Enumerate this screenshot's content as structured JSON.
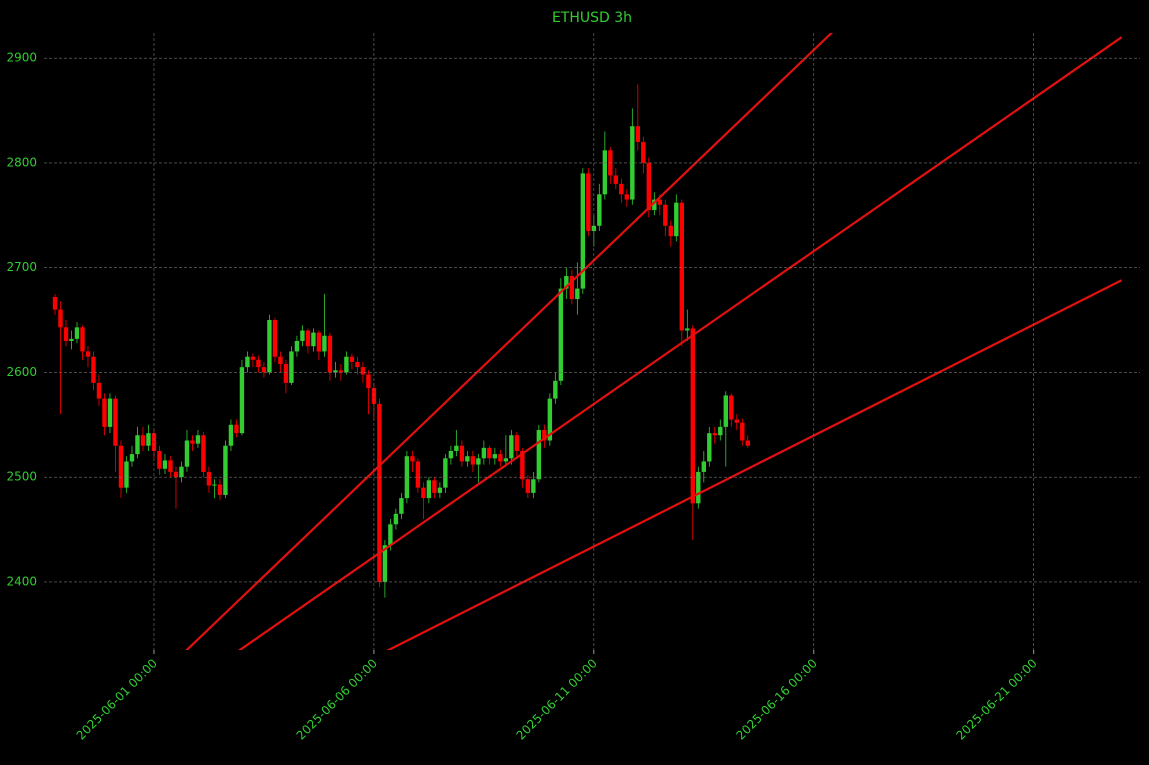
{
  "chart_data": {
    "type": "candlestick",
    "title": "ETHUSD 3h",
    "up_color": "#32cd32",
    "down_color": "#ff0000",
    "grid": true,
    "x": [
      "2025-05-29 18:00",
      "2025-05-29 21:00",
      "2025-05-30 00:00",
      "2025-05-30 03:00",
      "2025-05-30 06:00",
      "2025-05-30 09:00",
      "2025-05-30 12:00",
      "2025-05-30 15:00",
      "2025-05-30 18:00",
      "2025-05-30 21:00",
      "2025-05-31 00:00",
      "2025-05-31 03:00",
      "2025-05-31 06:00",
      "2025-05-31 09:00",
      "2025-05-31 12:00",
      "2025-05-31 15:00",
      "2025-05-31 18:00",
      "2025-05-31 21:00",
      "2025-06-01 00:00",
      "2025-06-01 03:00",
      "2025-06-01 06:00",
      "2025-06-01 09:00",
      "2025-06-01 12:00",
      "2025-06-01 15:00",
      "2025-06-01 18:00",
      "2025-06-01 21:00",
      "2025-06-02 00:00",
      "2025-06-02 03:00",
      "2025-06-02 06:00",
      "2025-06-02 09:00",
      "2025-06-02 12:00",
      "2025-06-02 15:00",
      "2025-06-02 18:00",
      "2025-06-02 21:00",
      "2025-06-03 00:00",
      "2025-06-03 03:00",
      "2025-06-03 06:00",
      "2025-06-03 09:00",
      "2025-06-03 12:00",
      "2025-06-03 15:00",
      "2025-06-03 18:00",
      "2025-06-03 21:00",
      "2025-06-04 00:00",
      "2025-06-04 03:00",
      "2025-06-04 06:00",
      "2025-06-04 09:00",
      "2025-06-04 12:00",
      "2025-06-04 15:00",
      "2025-06-04 18:00",
      "2025-06-04 21:00",
      "2025-06-05 00:00",
      "2025-06-05 03:00",
      "2025-06-05 06:00",
      "2025-06-05 09:00",
      "2025-06-05 12:00",
      "2025-06-05 15:00",
      "2025-06-05 18:00",
      "2025-06-05 21:00",
      "2025-06-06 00:00",
      "2025-06-06 03:00",
      "2025-06-06 06:00",
      "2025-06-06 09:00",
      "2025-06-06 12:00",
      "2025-06-06 15:00",
      "2025-06-06 18:00",
      "2025-06-06 21:00",
      "2025-06-07 00:00",
      "2025-06-07 03:00",
      "2025-06-07 06:00",
      "2025-06-07 09:00",
      "2025-06-07 12:00",
      "2025-06-07 15:00",
      "2025-06-07 18:00",
      "2025-06-07 21:00",
      "2025-06-08 00:00",
      "2025-06-08 03:00",
      "2025-06-08 06:00",
      "2025-06-08 09:00",
      "2025-06-08 12:00",
      "2025-06-08 15:00",
      "2025-06-08 18:00",
      "2025-06-08 21:00",
      "2025-06-09 00:00",
      "2025-06-09 03:00",
      "2025-06-09 06:00",
      "2025-06-09 09:00",
      "2025-06-09 12:00",
      "2025-06-09 15:00",
      "2025-06-09 18:00",
      "2025-06-09 21:00",
      "2025-06-10 00:00",
      "2025-06-10 03:00",
      "2025-06-10 06:00",
      "2025-06-10 09:00",
      "2025-06-10 12:00",
      "2025-06-10 15:00",
      "2025-06-10 18:00",
      "2025-06-10 21:00",
      "2025-06-11 00:00",
      "2025-06-11 03:00",
      "2025-06-11 06:00",
      "2025-06-11 09:00",
      "2025-06-11 12:00",
      "2025-06-11 15:00",
      "2025-06-11 18:00",
      "2025-06-11 21:00",
      "2025-06-12 00:00",
      "2025-06-12 03:00",
      "2025-06-12 06:00",
      "2025-06-12 09:00",
      "2025-06-12 12:00",
      "2025-06-12 15:00",
      "2025-06-12 18:00",
      "2025-06-12 21:00",
      "2025-06-13 00:00",
      "2025-06-13 03:00",
      "2025-06-13 06:00",
      "2025-06-13 09:00",
      "2025-06-13 12:00",
      "2025-06-13 15:00",
      "2025-06-13 18:00",
      "2025-06-13 21:00",
      "2025-06-14 00:00",
      "2025-06-14 03:00",
      "2025-06-14 06:00",
      "2025-06-14 09:00",
      "2025-06-14 12:00"
    ],
    "open": [
      2672,
      2660,
      2643,
      2630,
      2632,
      2643,
      2620,
      2615,
      2590,
      2575,
      2548,
      2575,
      2530,
      2490,
      2515,
      2522,
      2540,
      2530,
      2542,
      2525,
      2508,
      2516,
      2505,
      2500,
      2510,
      2535,
      2532,
      2540,
      2505,
      2492,
      2493,
      2483,
      2530,
      2550,
      2542,
      2605,
      2615,
      2612,
      2605,
      2600,
      2650,
      2615,
      2608,
      2590,
      2620,
      2630,
      2640,
      2625,
      2638,
      2620,
      2635,
      2600,
      2602,
      2600,
      2615,
      2610,
      2605,
      2598,
      2585,
      2570,
      2400,
      2435,
      2455,
      2465,
      2480,
      2520,
      2515,
      2490,
      2480,
      2497,
      2485,
      2490,
      2518,
      2525,
      2530,
      2515,
      2520,
      2512,
      2518,
      2528,
      2518,
      2522,
      2515,
      2518,
      2540,
      2525,
      2498,
      2485,
      2498,
      2545,
      2535,
      2575,
      2592,
      2680,
      2692,
      2670,
      2680,
      2790,
      2735,
      2740,
      2770,
      2812,
      2788,
      2780,
      2770,
      2765,
      2835,
      2820,
      2800,
      2755,
      2765,
      2760,
      2740,
      2730,
      2762,
      2640,
      2642,
      2475,
      2505,
      2515,
      2542,
      2540,
      2548,
      2578,
      2555,
      2552,
      2535
    ],
    "high": [
      2675,
      2668,
      2650,
      2640,
      2648,
      2645,
      2625,
      2620,
      2598,
      2580,
      2580,
      2578,
      2535,
      2520,
      2530,
      2548,
      2548,
      2550,
      2545,
      2530,
      2522,
      2520,
      2510,
      2515,
      2545,
      2540,
      2545,
      2543,
      2510,
      2498,
      2498,
      2535,
      2555,
      2555,
      2612,
      2620,
      2618,
      2616,
      2610,
      2655,
      2652,
      2620,
      2612,
      2625,
      2635,
      2645,
      2642,
      2642,
      2640,
      2675,
      2638,
      2610,
      2608,
      2620,
      2618,
      2615,
      2610,
      2602,
      2590,
      2575,
      2440,
      2460,
      2470,
      2485,
      2525,
      2525,
      2518,
      2495,
      2500,
      2500,
      2495,
      2522,
      2530,
      2545,
      2535,
      2525,
      2525,
      2522,
      2535,
      2530,
      2528,
      2526,
      2540,
      2545,
      2543,
      2528,
      2502,
      2505,
      2550,
      2550,
      2580,
      2600,
      2690,
      2700,
      2698,
      2705,
      2795,
      2795,
      2750,
      2780,
      2830,
      2815,
      2795,
      2785,
      2775,
      2852,
      2875,
      2825,
      2805,
      2772,
      2770,
      2765,
      2745,
      2770,
      2765,
      2660,
      2645,
      2510,
      2525,
      2548,
      2548,
      2555,
      2582,
      2580,
      2560,
      2556,
      2540
    ],
    "low": [
      2655,
      2560,
      2625,
      2622,
      2628,
      2612,
      2605,
      2583,
      2568,
      2540,
      2542,
      2505,
      2480,
      2485,
      2510,
      2518,
      2525,
      2525,
      2518,
      2502,
      2503,
      2500,
      2470,
      2495,
      2505,
      2525,
      2528,
      2500,
      2485,
      2480,
      2478,
      2480,
      2525,
      2538,
      2540,
      2600,
      2605,
      2600,
      2595,
      2598,
      2610,
      2600,
      2580,
      2588,
      2615,
      2625,
      2618,
      2620,
      2612,
      2615,
      2592,
      2595,
      2592,
      2598,
      2603,
      2598,
      2590,
      2560,
      2555,
      2395,
      2385,
      2430,
      2450,
      2460,
      2475,
      2505,
      2485,
      2460,
      2475,
      2480,
      2480,
      2485,
      2512,
      2520,
      2510,
      2510,
      2505,
      2495,
      2512,
      2512,
      2512,
      2510,
      2510,
      2512,
      2518,
      2490,
      2480,
      2480,
      2495,
      2528,
      2530,
      2570,
      2588,
      2670,
      2665,
      2655,
      2675,
      2730,
      2720,
      2735,
      2765,
      2780,
      2775,
      2762,
      2758,
      2760,
      2812,
      2790,
      2748,
      2750,
      2750,
      2730,
      2720,
      2725,
      2625,
      2630,
      2440,
      2470,
      2495,
      2510,
      2532,
      2535,
      2510,
      2548,
      2545,
      2530,
      2528
    ],
    "close": [
      2660,
      2643,
      2630,
      2632,
      2643,
      2620,
      2615,
      2590,
      2575,
      2548,
      2575,
      2530,
      2490,
      2515,
      2522,
      2540,
      2530,
      2542,
      2525,
      2508,
      2516,
      2505,
      2500,
      2510,
      2535,
      2532,
      2540,
      2505,
      2492,
      2493,
      2483,
      2530,
      2550,
      2542,
      2605,
      2615,
      2612,
      2605,
      2600,
      2650,
      2615,
      2608,
      2590,
      2620,
      2630,
      2640,
      2625,
      2638,
      2620,
      2635,
      2600,
      2602,
      2600,
      2615,
      2610,
      2605,
      2598,
      2585,
      2570,
      2400,
      2435,
      2455,
      2465,
      2480,
      2520,
      2515,
      2490,
      2480,
      2497,
      2485,
      2490,
      2518,
      2525,
      2530,
      2515,
      2520,
      2512,
      2518,
      2528,
      2518,
      2522,
      2515,
      2518,
      2540,
      2525,
      2498,
      2485,
      2498,
      2545,
      2535,
      2575,
      2592,
      2680,
      2692,
      2670,
      2680,
      2790,
      2735,
      2740,
      2770,
      2812,
      2788,
      2780,
      2770,
      2765,
      2835,
      2820,
      2800,
      2755,
      2765,
      2760,
      2740,
      2730,
      2762,
      2640,
      2642,
      2475,
      2505,
      2515,
      2542,
      2540,
      2548,
      2578,
      2555,
      2552,
      2535,
      2530
    ],
    "trend_lines": [
      {
        "color": "#e31010",
        "x": [
          "2025-06-01 00:00",
          "2025-06-17 00:00"
        ],
        "y": [
          2305,
          2948
        ]
      },
      {
        "color": "#e31010",
        "x": [
          "2025-06-01 00:00",
          "2025-06-23 00:00"
        ],
        "y": [
          2278,
          2920
        ]
      },
      {
        "color": "#e31010",
        "x": [
          "2025-06-01 00:00",
          "2025-06-23 00:00"
        ],
        "y": [
          2222,
          2688
        ]
      }
    ],
    "xlim": [
      "2025-05-29 12:00",
      "2025-06-23 10:00"
    ],
    "xticks": [
      "2025-06-01 00:00",
      "2025-06-06 00:00",
      "2025-06-11 00:00",
      "2025-06-16 00:00",
      "2025-06-21 00:00"
    ],
    "ylim": [
      2335,
      2924
    ],
    "yticks": [
      2400,
      2500,
      2600,
      2700,
      2800,
      2900
    ]
  }
}
